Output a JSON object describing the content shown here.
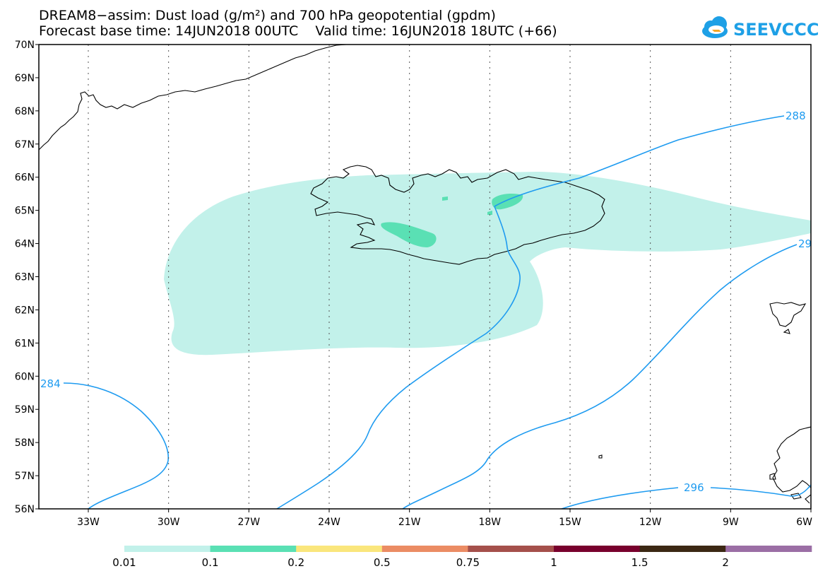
{
  "title_line1": "DREAM8−assim: Dust load (g/m²) and 700 hPa geopotential (gpdm)",
  "title_line2": "Forecast base time: 14JUN2018 00UTC    Valid time: 16JUN2018 18UTC (+66)",
  "logo": {
    "text": "SEEVCCC",
    "icon": "cloud-logo-icon",
    "color": "#1ea0e6"
  },
  "map": {
    "lat_labels": [
      "70N",
      "69N",
      "68N",
      "67N",
      "66N",
      "65N",
      "64N",
      "63N",
      "62N",
      "61N",
      "60N",
      "59N",
      "58N",
      "57N",
      "56N"
    ],
    "lon_labels": [
      "33W",
      "30W",
      "27W",
      "24W",
      "21W",
      "18W",
      "15W",
      "12W",
      "9W",
      "6W"
    ],
    "contour_color": "#1e9bf0",
    "contour_labels": [
      "288",
      "29",
      "284",
      "296"
    ]
  },
  "legend": {
    "colors": [
      "#c2f1ea",
      "#5ae0b4",
      "#fae67c",
      "#eb8c64",
      "#a5504b",
      "#78002d",
      "#3c2814",
      "#9b6ea5"
    ],
    "labels": [
      "0.01",
      "0.1",
      "0.2",
      "0.5",
      "0.75",
      "1",
      "1.5",
      "2"
    ]
  }
}
